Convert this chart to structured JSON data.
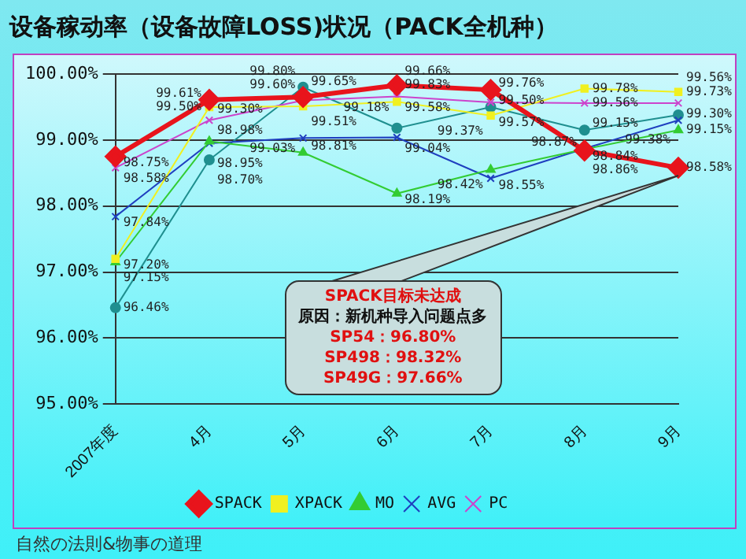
{
  "chart_data": {
    "type": "line",
    "title": "设备稼动率（设备故障LOSS)状况（PACK全机种）",
    "categories": [
      "2007年度",
      "4月",
      "5月",
      "6月",
      "7月",
      "8月",
      "9月"
    ],
    "series": [
      {
        "name": "SPACK",
        "color": "#e8141c",
        "marker": "diamond",
        "values": [
          98.75,
          99.61,
          99.65,
          99.83,
          99.76,
          98.84,
          98.58
        ],
        "value_labels": [
          "98.75%",
          "99.61%",
          "99.65%",
          "99.83%",
          "99.76%",
          "98.84%",
          "98.58%"
        ]
      },
      {
        "name": "XPACK",
        "color": "#f0f020",
        "marker": "square",
        "values": [
          97.2,
          99.5,
          99.51,
          99.58,
          99.37,
          99.78,
          99.73
        ],
        "value_labels": [
          "97.20%",
          "99.50%",
          "99.51%",
          "99.58%",
          "99.37%",
          "99.78%",
          "99.73%"
        ]
      },
      {
        "name": "MO",
        "color": "#33cc33",
        "marker": "triangle",
        "values": [
          97.15,
          98.98,
          98.81,
          98.19,
          98.55,
          98.86,
          99.15
        ],
        "value_labels": [
          "97.15%",
          "98.98%",
          "98.81%",
          "98.19%",
          "98.55%",
          "98.86%",
          "99.15%"
        ]
      },
      {
        "name": "AVG",
        "color": "#1f3fbf",
        "marker": "cross",
        "values": [
          97.84,
          98.95,
          99.03,
          99.04,
          98.42,
          98.87,
          99.3
        ],
        "value_labels": [
          "97.84%",
          "98.95%",
          "99.03%",
          "99.04%",
          "98.42%",
          "98.87%",
          "99.30%"
        ]
      },
      {
        "name": "PC",
        "color": "#cc44cc",
        "marker": "cross",
        "values": [
          98.58,
          99.3,
          99.6,
          99.66,
          99.57,
          99.56,
          99.56
        ],
        "value_labels": [
          "98.58%",
          "99.30%",
          "99.60%",
          "99.66%",
          "99.57%",
          "99.56%",
          "99.56%"
        ]
      },
      {
        "color": "#1f8f8f",
        "marker": "circle",
        "values": [
          96.46,
          98.7,
          99.8,
          99.18,
          99.5,
          99.15,
          99.38
        ],
        "value_labels": [
          "96.46%",
          "98.70%",
          "99.80%",
          "99.18%",
          "99.50%",
          "99.15%",
          "99.38%"
        ]
      }
    ],
    "ylim": [
      95,
      100
    ],
    "yticks": [
      {
        "value": 95,
        "label": "95.00%"
      },
      {
        "value": 96,
        "label": "96.00%"
      },
      {
        "value": 97,
        "label": "97.00%"
      },
      {
        "value": 98,
        "label": "98.00%"
      },
      {
        "value": 99,
        "label": "99.00%"
      },
      {
        "value": 100,
        "label": "100.00%"
      }
    ],
    "grid": "y",
    "legend": "bottom",
    "annotations": [
      "SPACK目标未达成",
      "原因：新机种导入问题点多",
      "SP54：96.80%",
      "SP498：98.32%",
      "SP49G：97.66%",
      "自然の法則&物事の道理"
    ]
  }
}
